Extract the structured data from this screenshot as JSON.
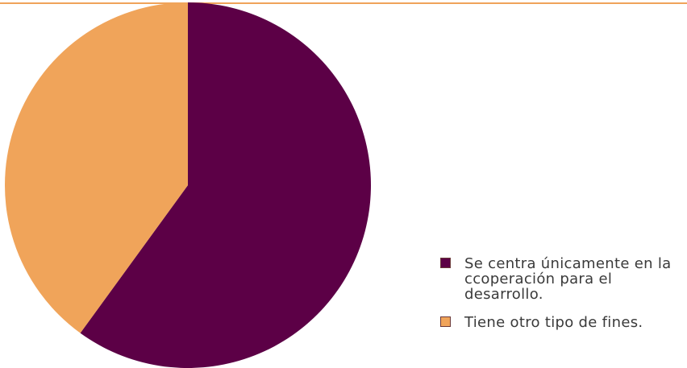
{
  "chart_data": {
    "type": "pie",
    "series": [
      {
        "name": "Se centra únicamente en la ccoperación para el desarrollo.",
        "value": 60,
        "color": "#5c0046"
      },
      {
        "name": "Tiene otro tipo de fines.",
        "value": 40,
        "color": "#f0a45a"
      }
    ],
    "legend_position": "right-bottom"
  },
  "colors": {
    "rule": "#f0a35a",
    "swatch_border": "#6b3a3a"
  }
}
